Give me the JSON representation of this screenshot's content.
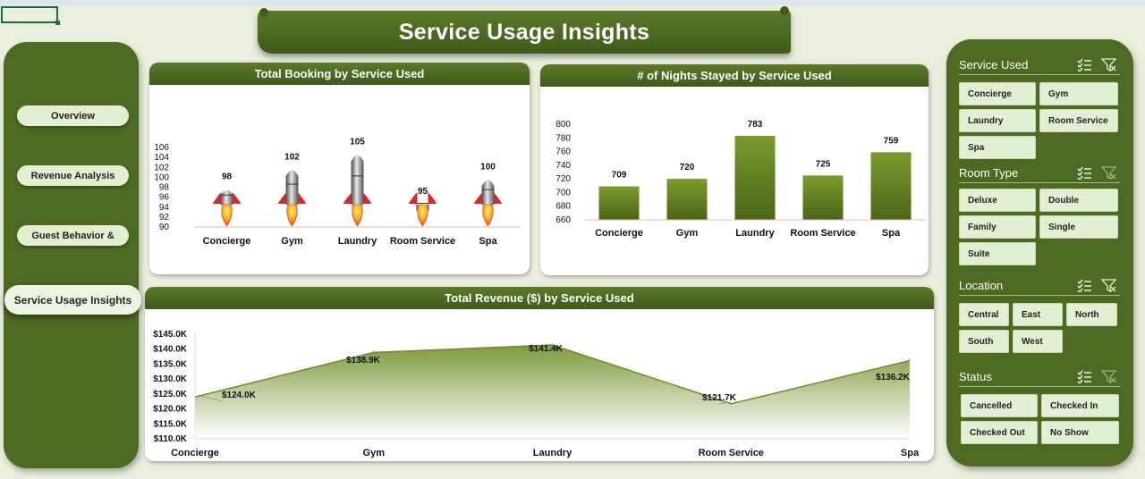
{
  "title": "Service Usage Insights",
  "nav": {
    "items": [
      {
        "label": "Overview"
      },
      {
        "label": "Revenue Analysis"
      },
      {
        "label": "Guest Behavior &"
      },
      {
        "label": "Service Usage Insights"
      }
    ],
    "active": "Service Usage Insights"
  },
  "accent_color": "#4d6a22",
  "chart_data": [
    {
      "type": "bar",
      "title": "Total Booking by Service Used",
      "categories": [
        "Concierge",
        "Gym",
        "Laundry",
        "Room Service",
        "Spa"
      ],
      "values": [
        98,
        102,
        105,
        95,
        100
      ],
      "ylim": [
        90,
        106
      ],
      "yticks": [
        "106",
        "104",
        "102",
        "100",
        "98",
        "96",
        "94",
        "92",
        "90"
      ],
      "marker": "rocket-icon",
      "grid": false
    },
    {
      "type": "bar",
      "title": "# of Nights Stayed by Service Used",
      "categories": [
        "Concierge",
        "Gym",
        "Laundry",
        "Room Service",
        "Spa"
      ],
      "values": [
        709,
        720,
        783,
        725,
        759
      ],
      "ylim": [
        660,
        800
      ],
      "yticks": [
        "800",
        "780",
        "760",
        "740",
        "720",
        "700",
        "680",
        "660"
      ],
      "grid": false
    },
    {
      "type": "area",
      "title": "Total Revenue ($) by Service Used",
      "categories": [
        "Concierge",
        "Gym",
        "Laundry",
        "Room Service",
        "Spa"
      ],
      "values": [
        124.0,
        138.9,
        141.4,
        121.7,
        136.2
      ],
      "data_labels": [
        "$124.0K",
        "$138.9K",
        "$141.4K",
        "$121.7K",
        "$136.2K"
      ],
      "ylim": [
        110,
        145
      ],
      "yticks": [
        "$145.0K",
        "$140.0K",
        "$135.0K",
        "$130.0K",
        "$125.0K",
        "$120.0K",
        "$115.0K",
        "$110.0K"
      ],
      "grid": false
    }
  ],
  "slicers": [
    {
      "title": "Service Used",
      "filter_active": true,
      "options": [
        "Concierge",
        "Gym",
        "Laundry",
        "Room Service",
        "Spa"
      ]
    },
    {
      "title": "Room Type",
      "filter_active": false,
      "options": [
        "Deluxe",
        "Double",
        "Family",
        "Single",
        "Suite"
      ]
    },
    {
      "title": "Location",
      "filter_active": true,
      "options": [
        "Central",
        "East",
        "North",
        "South",
        "West"
      ]
    },
    {
      "title": "Status",
      "filter_active": false,
      "options": [
        "Cancelled",
        "Checked In",
        "Checked Out",
        "No Show"
      ]
    }
  ]
}
